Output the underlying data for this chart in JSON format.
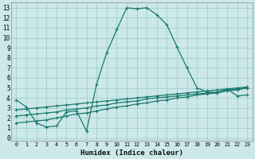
{
  "xlabel": "Humidex (Indice chaleur)",
  "bg_color": "#cce8e8",
  "grid_color": "#99cccc",
  "line_color": "#1a7a6e",
  "xlim": [
    -0.5,
    23.5
  ],
  "ylim": [
    -0.3,
    13.5
  ],
  "xticks": [
    0,
    1,
    2,
    3,
    4,
    5,
    6,
    7,
    8,
    9,
    10,
    11,
    12,
    13,
    14,
    15,
    16,
    17,
    18,
    19,
    20,
    21,
    22,
    23
  ],
  "yticks": [
    0,
    1,
    2,
    3,
    4,
    5,
    6,
    7,
    8,
    9,
    10,
    11,
    12,
    13
  ],
  "line1_x": [
    0,
    1,
    2,
    3,
    4,
    5,
    6,
    7,
    8,
    9,
    10,
    11,
    12,
    13,
    14,
    15,
    16,
    17,
    18,
    19,
    20,
    21,
    22,
    23
  ],
  "line1_y": [
    3.8,
    3.1,
    1.5,
    1.1,
    1.2,
    2.6,
    2.7,
    0.7,
    5.4,
    8.5,
    10.8,
    13.0,
    12.9,
    13.0,
    12.3,
    11.3,
    9.1,
    7.0,
    5.0,
    4.6,
    4.5,
    4.9,
    4.2,
    4.3
  ],
  "line2_x": [
    0,
    1,
    2,
    3,
    4,
    5,
    6,
    7,
    8,
    9,
    10,
    11,
    12,
    13,
    14,
    15,
    16,
    17,
    18,
    19,
    20,
    21,
    22,
    23
  ],
  "line2_y": [
    1.5,
    1.6,
    1.7,
    1.8,
    2.0,
    2.2,
    2.4,
    2.5,
    2.7,
    2.9,
    3.1,
    3.2,
    3.4,
    3.5,
    3.7,
    3.8,
    4.0,
    4.1,
    4.3,
    4.4,
    4.5,
    4.7,
    4.8,
    5.0
  ],
  "line3_x": [
    0,
    1,
    2,
    3,
    4,
    5,
    6,
    7,
    8,
    9,
    10,
    11,
    12,
    13,
    14,
    15,
    16,
    17,
    18,
    19,
    20,
    21,
    22,
    23
  ],
  "line3_y": [
    2.2,
    2.3,
    2.4,
    2.5,
    2.6,
    2.8,
    2.9,
    3.0,
    3.2,
    3.3,
    3.5,
    3.6,
    3.7,
    3.9,
    4.0,
    4.1,
    4.2,
    4.3,
    4.4,
    4.5,
    4.6,
    4.8,
    4.9,
    5.0
  ],
  "line4_x": [
    0,
    1,
    2,
    3,
    4,
    5,
    6,
    7,
    8,
    9,
    10,
    11,
    12,
    13,
    14,
    15,
    16,
    17,
    18,
    19,
    20,
    21,
    22,
    23
  ],
  "line4_y": [
    2.8,
    2.9,
    3.0,
    3.1,
    3.2,
    3.3,
    3.4,
    3.5,
    3.6,
    3.7,
    3.8,
    3.9,
    4.0,
    4.1,
    4.2,
    4.3,
    4.4,
    4.5,
    4.6,
    4.7,
    4.8,
    4.9,
    5.0,
    5.1
  ]
}
